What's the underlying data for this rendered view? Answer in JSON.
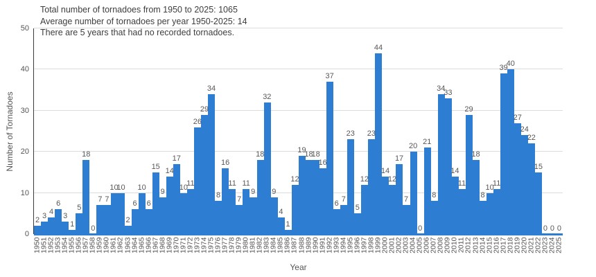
{
  "chart_data": {
    "type": "bar",
    "annotations": [
      "Total number of tornadoes from 1950 to 2025: 1065",
      "Average number of tornadoes per year 1950-2025: 14",
      "There are 5 years that had no recorded tornadoes."
    ],
    "xlabel": "Year",
    "ylabel": "Number of Tornadoes",
    "ylim": [
      0,
      50
    ],
    "yticks": [
      0,
      10,
      20,
      30,
      40,
      50
    ],
    "grid": true,
    "legend": "none",
    "bar_gap": 0,
    "value_labels": "above each bar",
    "colors": {
      "bar": "#2d7dd2",
      "grid": "#dcdcdc",
      "axis_line": "#3a3a3a",
      "tick_text": "#545454",
      "annotation_text": "#3d3d3d"
    },
    "categories": [
      "1950",
      "1951",
      "1952",
      "1953",
      "1954",
      "1955",
      "1956",
      "1957",
      "1958",
      "1959",
      "1960",
      "1961",
      "1962",
      "1963",
      "1964",
      "1965",
      "1966",
      "1967",
      "1968",
      "1969",
      "1970",
      "1971",
      "1972",
      "1973",
      "1974",
      "1975",
      "1976",
      "1977",
      "1978",
      "1979",
      "1980",
      "1981",
      "1982",
      "1983",
      "1984",
      "1985",
      "1986",
      "1987",
      "1988",
      "1989",
      "1990",
      "1991",
      "1992",
      "1993",
      "1994",
      "1995",
      "1996",
      "1997",
      "1998",
      "1999",
      "2000",
      "2001",
      "2002",
      "2003",
      "2004",
      "2005",
      "2006",
      "2007",
      "2008",
      "2009",
      "2010",
      "2011",
      "2012",
      "2013",
      "2014",
      "2015",
      "2016",
      "2017",
      "2018",
      "2019",
      "2020",
      "2021",
      "2022",
      "2023",
      "2024",
      "2025"
    ],
    "values": [
      2,
      3,
      4,
      6,
      3,
      1,
      5,
      18,
      0,
      7,
      7,
      10,
      10,
      2,
      6,
      10,
      6,
      15,
      9,
      14,
      17,
      10,
      11,
      26,
      29,
      34,
      8,
      16,
      11,
      7,
      11,
      9,
      18,
      32,
      9,
      4,
      1,
      12,
      19,
      18,
      18,
      16,
      37,
      6,
      7,
      23,
      5,
      12,
      23,
      44,
      14,
      12,
      17,
      7,
      20,
      0,
      21,
      8,
      34,
      33,
      14,
      11,
      29,
      18,
      8,
      10,
      11,
      39,
      40,
      27,
      24,
      22,
      15,
      0,
      0,
      0
    ]
  }
}
